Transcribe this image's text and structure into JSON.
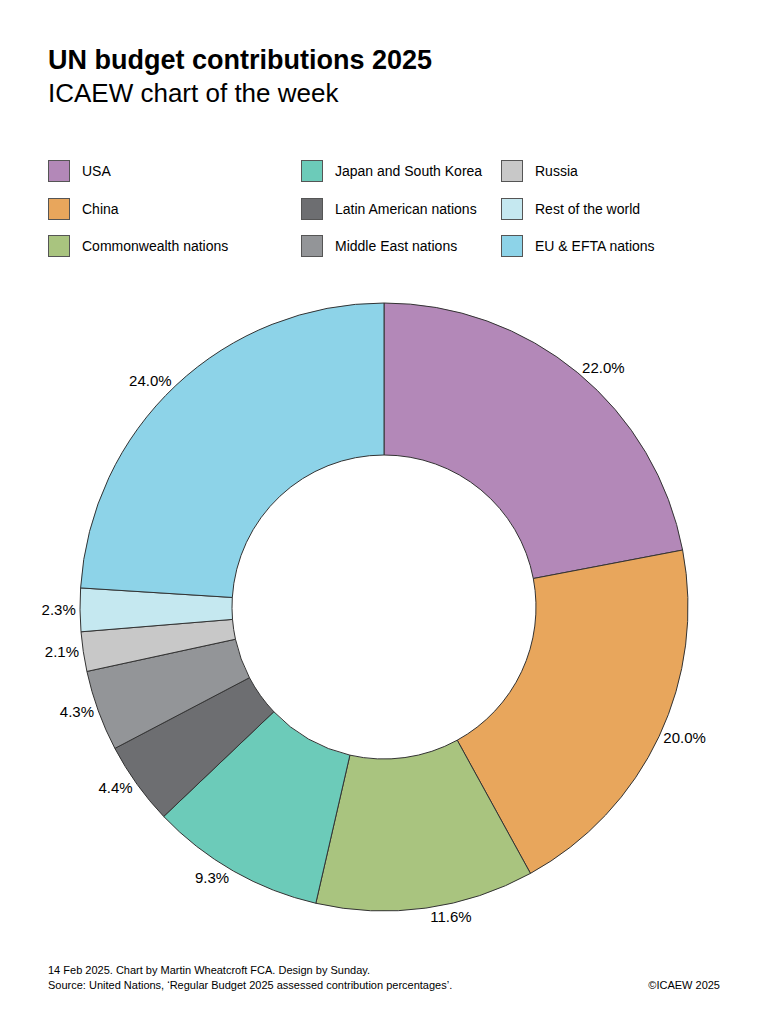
{
  "chart_data": {
    "type": "pie",
    "title": "UN budget contributions 2025",
    "subtitle": "ICAEW chart of the week",
    "categories": [
      "USA",
      "China",
      "Commonwealth nations",
      "Japan and South Korea",
      "Latin American nations",
      "Middle East nations",
      "Russia",
      "Rest of the world",
      "EU & EFTA nations"
    ],
    "values": [
      22.0,
      20.0,
      11.6,
      9.3,
      4.4,
      4.3,
      2.1,
      2.3,
      24.0
    ],
    "value_labels": [
      "22.0%",
      "20.0%",
      "11.6%",
      "9.3%",
      "4.4%",
      "4.3%",
      "2.1%",
      "2.3%",
      "24.0%"
    ],
    "colors": [
      "#b388b8",
      "#e8a65c",
      "#a9c47f",
      "#6ccbb9",
      "#6d6e71",
      "#939598",
      "#c8c8c8",
      "#c5e8f0",
      "#8dd3e8"
    ],
    "data_labels": true,
    "legend": "top",
    "annotations": [
      "14 Feb 2025.   Chart by Martin Wheatcroft FCA. Design by Sunday.",
      "Source: United Nations, ‘Regular Budget 2025 assessed contribution percentages’.",
      "©ICAEW 2025"
    ]
  }
}
